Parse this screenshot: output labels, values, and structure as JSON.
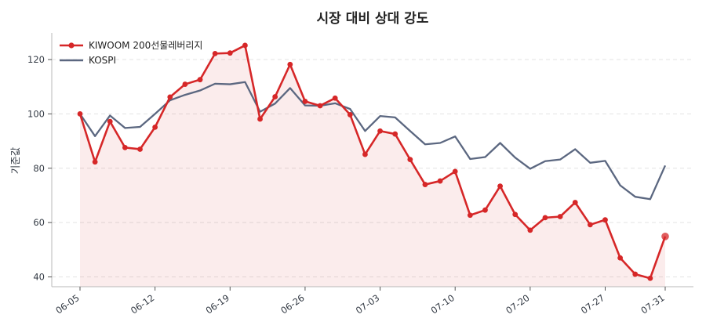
{
  "chart_data": {
    "type": "line",
    "title": "시장 대비 상대 강도",
    "xlabel": "",
    "ylabel": "기준값",
    "ylim": [
      36.4,
      129.8
    ],
    "yticks": [
      40,
      60,
      80,
      100,
      120
    ],
    "xticks": [
      "06-05",
      "06-12",
      "06-19",
      "06-26",
      "07-03",
      "07-10",
      "07-20",
      "07-27",
      "07-31"
    ],
    "xtick_index": [
      0,
      5,
      10,
      15,
      20,
      25,
      30,
      35,
      39
    ],
    "grid": true,
    "legend_position": "top-left",
    "x": [
      "06-05",
      "06-06",
      "06-07",
      "06-08",
      "06-09",
      "06-12",
      "06-13",
      "06-14",
      "06-15",
      "06-16",
      "06-19",
      "06-20",
      "06-21",
      "06-22",
      "06-23",
      "06-26",
      "06-27",
      "06-28",
      "06-29",
      "06-30",
      "07-03",
      "07-04",
      "07-05",
      "07-06",
      "07-07",
      "07-10",
      "07-11",
      "07-12",
      "07-13",
      "07-14",
      "07-20",
      "07-21",
      "07-22",
      "07-23",
      "07-24",
      "07-27",
      "07-28",
      "07-29",
      "07-30",
      "07-31"
    ],
    "series": [
      {
        "name": "KIWOOM 200선물레버리지",
        "color": "#d62728",
        "values": [
          100.0,
          82.3,
          97.2,
          87.6,
          87.0,
          95.1,
          106.2,
          110.9,
          112.6,
          122.2,
          122.4,
          125.2,
          98.1,
          106.3,
          118.2,
          104.6,
          103.0,
          105.8,
          99.7,
          85.1,
          93.7,
          92.6,
          83.2,
          74.0,
          75.3,
          78.8,
          62.7,
          64.6,
          73.4,
          63.0,
          57.2,
          61.8,
          62.2,
          67.4,
          59.2,
          61.0,
          47.0,
          41.0,
          39.5,
          54.9
        ]
      },
      {
        "name": "KOSPI",
        "color": "#5b6780",
        "values": [
          100.0,
          91.8,
          99.4,
          94.8,
          95.2,
          100.0,
          105.0,
          107.0,
          108.6,
          111.1,
          110.9,
          111.7,
          100.8,
          103.8,
          109.5,
          103.1,
          103.0,
          103.9,
          101.8,
          93.7,
          99.2,
          98.7,
          93.7,
          88.8,
          89.3,
          91.7,
          83.4,
          84.1,
          89.3,
          83.9,
          79.8,
          82.6,
          83.2,
          87.0,
          82.0,
          82.7,
          73.7,
          69.5,
          68.6,
          81.0
        ]
      }
    ]
  }
}
